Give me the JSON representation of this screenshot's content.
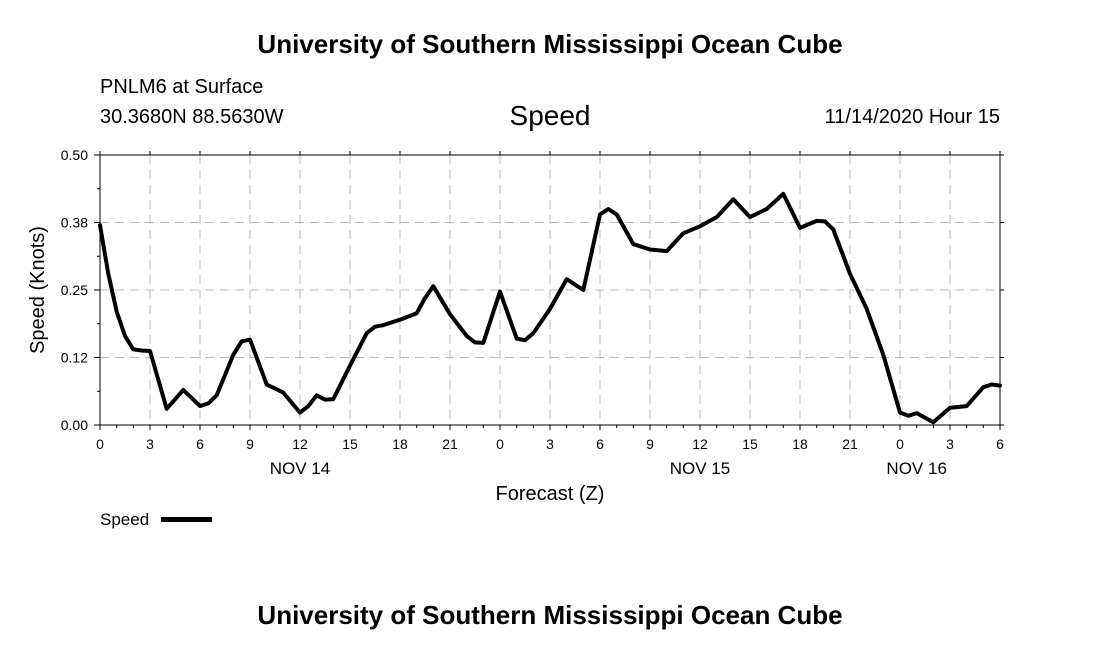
{
  "header": {
    "title": "University of Southern Mississippi Ocean Cube",
    "station": "PNLM6 at Surface",
    "location": "30.3680N 88.5630W",
    "variable": "Speed",
    "issued": "11/14/2020 Hour 15"
  },
  "footer": {
    "title": "University of Southern Mississippi Ocean Cube"
  },
  "chart_data": {
    "type": "line",
    "title": "Speed",
    "xlabel": "Forecast (Z)",
    "ylabel": "Speed (Knots)",
    "ylim": [
      0,
      0.5
    ],
    "xlim": [
      0,
      54
    ],
    "grid": true,
    "y_ticks": [
      {
        "value": 0.0,
        "label": "0.00"
      },
      {
        "value": 0.125,
        "label": "0.12"
      },
      {
        "value": 0.25,
        "label": "0.25"
      },
      {
        "value": 0.375,
        "label": "0.38"
      },
      {
        "value": 0.5,
        "label": "0.50"
      }
    ],
    "x_ticks": [
      {
        "value": 0,
        "label": "0"
      },
      {
        "value": 3,
        "label": "3"
      },
      {
        "value": 6,
        "label": "6"
      },
      {
        "value": 9,
        "label": "9"
      },
      {
        "value": 12,
        "label": "12"
      },
      {
        "value": 15,
        "label": "15"
      },
      {
        "value": 18,
        "label": "18"
      },
      {
        "value": 21,
        "label": "21"
      },
      {
        "value": 24,
        "label": "0"
      },
      {
        "value": 27,
        "label": "3"
      },
      {
        "value": 30,
        "label": "6"
      },
      {
        "value": 33,
        "label": "9"
      },
      {
        "value": 36,
        "label": "12"
      },
      {
        "value": 39,
        "label": "15"
      },
      {
        "value": 42,
        "label": "18"
      },
      {
        "value": 45,
        "label": "21"
      },
      {
        "value": 48,
        "label": "0"
      },
      {
        "value": 51,
        "label": "3"
      },
      {
        "value": 54,
        "label": "6"
      }
    ],
    "day_labels": [
      {
        "value": 12,
        "label": "NOV 14"
      },
      {
        "value": 36,
        "label": "NOV 15"
      },
      {
        "value": 49,
        "label": "NOV 16"
      }
    ],
    "legend": {
      "label": "Speed",
      "position": "bottom-left"
    },
    "series": [
      {
        "name": "Speed",
        "x": [
          0,
          0.5,
          1,
          1.5,
          2,
          2.5,
          3,
          4,
          5,
          6,
          6.5,
          7,
          8,
          8.5,
          9,
          10,
          11,
          12,
          12.5,
          13,
          13.5,
          14,
          15,
          16,
          16.5,
          17,
          18,
          19,
          19.5,
          20,
          21,
          22,
          22.5,
          23,
          24,
          25,
          25.5,
          26,
          27,
          28,
          29,
          30,
          30.5,
          31,
          32,
          33,
          34,
          35,
          36,
          37,
          38,
          39,
          40,
          41,
          42,
          43,
          43.5,
          44,
          45,
          46,
          47,
          48,
          48.5,
          49,
          50,
          51,
          52,
          53,
          53.5,
          54
        ],
        "values": [
          0.37,
          0.28,
          0.21,
          0.165,
          0.14,
          0.138,
          0.137,
          0.03,
          0.065,
          0.035,
          0.04,
          0.055,
          0.13,
          0.155,
          0.158,
          0.075,
          0.06,
          0.023,
          0.035,
          0.055,
          0.047,
          0.048,
          0.11,
          0.17,
          0.182,
          0.185,
          0.195,
          0.207,
          0.235,
          0.257,
          0.205,
          0.165,
          0.153,
          0.152,
          0.247,
          0.16,
          0.157,
          0.17,
          0.215,
          0.27,
          0.25,
          0.39,
          0.4,
          0.39,
          0.335,
          0.325,
          0.322,
          0.355,
          0.368,
          0.385,
          0.418,
          0.385,
          0.4,
          0.428,
          0.365,
          0.378,
          0.377,
          0.362,
          0.28,
          0.215,
          0.13,
          0.023,
          0.017,
          0.022,
          0.005,
          0.032,
          0.035,
          0.07,
          0.075,
          0.073
        ]
      }
    ]
  }
}
